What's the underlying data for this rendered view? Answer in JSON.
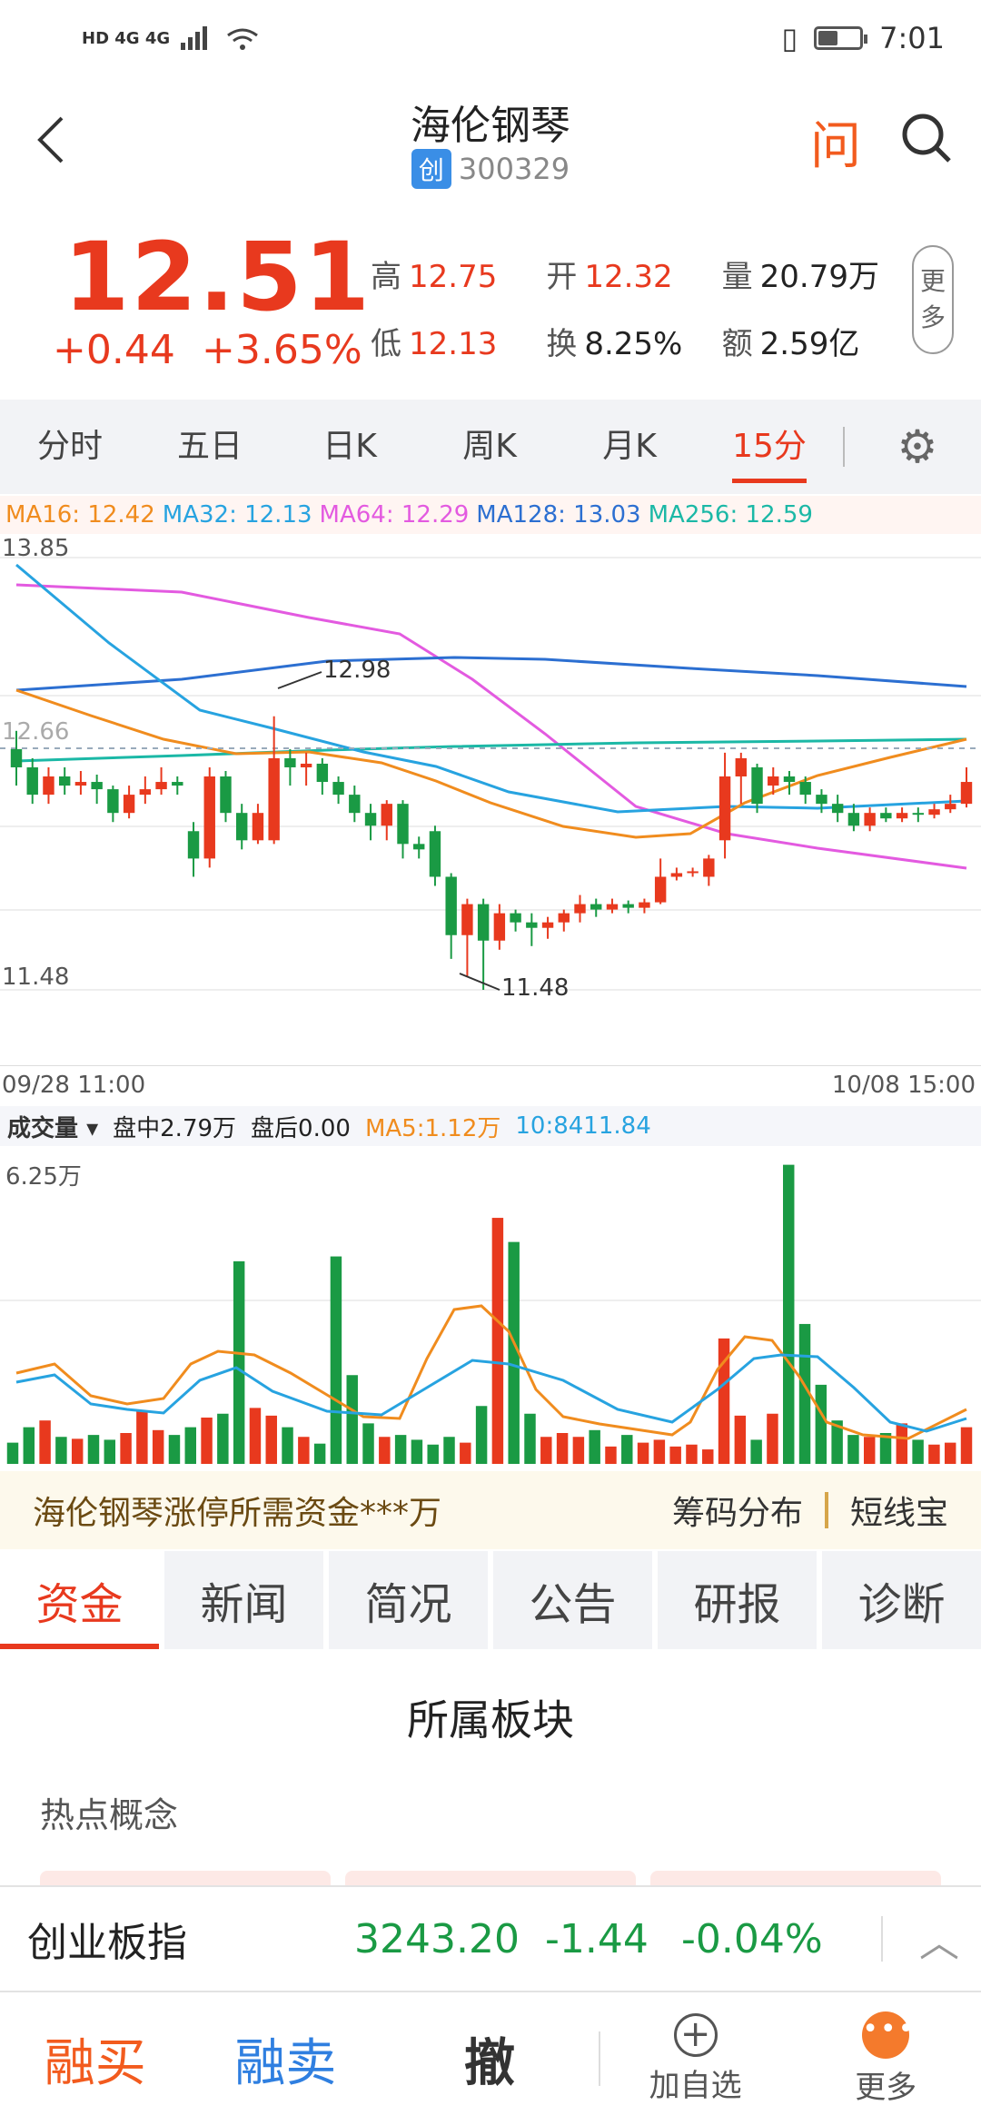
{
  "status": {
    "left_icons": "HD 4G 4G",
    "time": "7:01"
  },
  "header": {
    "title": "海伦钢琴",
    "board_badge": "创",
    "code": "300329",
    "ask_label": "问"
  },
  "quote": {
    "price": "12.51",
    "change": "+0.44",
    "change_pct": "+3.65%",
    "high_label": "高",
    "high": "12.75",
    "open_label": "开",
    "open": "12.32",
    "volume_label": "量",
    "volume": "20.79万",
    "low_label": "低",
    "low": "12.13",
    "turnover_label": "换",
    "turnover": "8.25%",
    "amount_label": "额",
    "amount": "2.59亿",
    "more_label_1": "更",
    "more_label_2": "多"
  },
  "period_tabs": [
    "分时",
    "五日",
    "日K",
    "周K",
    "月K",
    "15分"
  ],
  "active_period": 5,
  "ma_legend": {
    "ma16": "MA16: 12.42",
    "ma32": "MA32: 12.13",
    "ma64": "MA64: 12.29",
    "ma128": "MA128: 13.03",
    "ma256": "MA256: 12.59"
  },
  "colors": {
    "up": "#e8391e",
    "down": "#1a9a44",
    "ma16": "#f08c1e",
    "ma32": "#27a3e0",
    "ma64": "#e35ae0",
    "ma128": "#2c6fd1",
    "ma256": "#1bb8a6"
  },
  "kchart": {
    "y_top": "13.85",
    "y_bottom": "11.48",
    "ref_price": "12.66",
    "high_mark": "12.98",
    "low_mark": "11.48",
    "x_start": "09/28 11:00",
    "x_end": "10/08 15:00"
  },
  "volume": {
    "label": "成交量",
    "intraday": "盘中2.79万",
    "after": "盘后0.00",
    "ma5": "MA5:1.12万",
    "ma10": "10:8411.84",
    "y_top": "6.25万"
  },
  "banner": {
    "text": "海伦钢琴涨停所需资金***万",
    "chip": "筹码分布",
    "short": "短线宝"
  },
  "info_tabs": [
    "资金",
    "新闻",
    "简况",
    "公告",
    "研报",
    "诊断"
  ],
  "section_title": "所属板块",
  "hot_concept": "热点概念",
  "index": {
    "name": "创业板指",
    "value": "3243.20",
    "change": "-1.44",
    "pct": "-0.04%"
  },
  "bottom": {
    "buy": "融买",
    "sell": "融卖",
    "cancel": "撤",
    "add": "加自选",
    "more": "更多"
  },
  "chart_data": {
    "type": "candlestick",
    "ylim": [
      11.48,
      13.85
    ],
    "candles": [
      [
        12.8,
        12.7,
        12.9,
        12.6
      ],
      [
        12.7,
        12.55,
        12.75,
        12.5
      ],
      [
        12.55,
        12.65,
        12.7,
        12.5
      ],
      [
        12.65,
        12.6,
        12.7,
        12.55
      ],
      [
        12.6,
        12.62,
        12.68,
        12.55
      ],
      [
        12.62,
        12.58,
        12.66,
        12.5
      ],
      [
        12.58,
        12.45,
        12.6,
        12.4
      ],
      [
        12.45,
        12.55,
        12.6,
        12.42
      ],
      [
        12.55,
        12.58,
        12.65,
        12.5
      ],
      [
        12.58,
        12.62,
        12.7,
        12.55
      ],
      [
        12.62,
        12.6,
        12.65,
        12.55
      ],
      [
        12.35,
        12.2,
        12.4,
        12.1
      ],
      [
        12.2,
        12.65,
        12.7,
        12.15
      ],
      [
        12.65,
        12.45,
        12.68,
        12.4
      ],
      [
        12.45,
        12.3,
        12.5,
        12.25
      ],
      [
        12.3,
        12.45,
        12.5,
        12.28
      ],
      [
        12.3,
        12.75,
        12.98,
        12.28
      ],
      [
        12.75,
        12.7,
        12.8,
        12.6
      ],
      [
        12.7,
        12.72,
        12.78,
        12.6
      ],
      [
        12.72,
        12.62,
        12.75,
        12.55
      ],
      [
        12.62,
        12.55,
        12.65,
        12.5
      ],
      [
        12.55,
        12.45,
        12.6,
        12.4
      ],
      [
        12.45,
        12.38,
        12.5,
        12.3
      ],
      [
        12.38,
        12.5,
        12.52,
        12.3
      ],
      [
        12.5,
        12.28,
        12.52,
        12.2
      ],
      [
        12.28,
        12.25,
        12.32,
        12.2
      ],
      [
        12.35,
        12.1,
        12.38,
        12.05
      ],
      [
        12.1,
        11.78,
        12.12,
        11.65
      ],
      [
        11.78,
        11.95,
        11.98,
        11.55
      ],
      [
        11.95,
        11.75,
        11.98,
        11.48
      ],
      [
        11.75,
        11.9,
        11.95,
        11.7
      ],
      [
        11.9,
        11.85,
        11.92,
        11.8
      ],
      [
        11.85,
        11.82,
        11.9,
        11.72
      ],
      [
        11.82,
        11.85,
        11.88,
        11.76
      ],
      [
        11.85,
        11.9,
        11.92,
        11.8
      ],
      [
        11.9,
        11.95,
        12.0,
        11.85
      ],
      [
        11.95,
        11.92,
        11.98,
        11.88
      ],
      [
        11.92,
        11.95,
        11.98,
        11.9
      ],
      [
        11.95,
        11.93,
        11.97,
        11.9
      ],
      [
        11.93,
        11.96,
        11.98,
        11.9
      ],
      [
        11.96,
        12.1,
        12.2,
        11.95
      ],
      [
        12.1,
        12.12,
        12.15,
        12.08
      ],
      [
        12.12,
        12.13,
        12.15,
        12.1
      ],
      [
        12.1,
        12.2,
        12.22,
        12.05
      ],
      [
        12.3,
        12.65,
        12.78,
        12.2
      ],
      [
        12.65,
        12.75,
        12.78,
        12.5
      ],
      [
        12.7,
        12.5,
        12.72,
        12.45
      ],
      [
        12.6,
        12.65,
        12.7,
        12.55
      ],
      [
        12.65,
        12.62,
        12.68,
        12.55
      ],
      [
        12.62,
        12.55,
        12.65,
        12.5
      ],
      [
        12.55,
        12.5,
        12.58,
        12.45
      ],
      [
        12.5,
        12.45,
        12.55,
        12.4
      ],
      [
        12.45,
        12.38,
        12.5,
        12.35
      ],
      [
        12.38,
        12.45,
        12.48,
        12.35
      ],
      [
        12.45,
        12.42,
        12.48,
        12.4
      ],
      [
        12.42,
        12.45,
        12.48,
        12.4
      ],
      [
        12.45,
        12.44,
        12.48,
        12.4
      ],
      [
        12.44,
        12.47,
        12.5,
        12.42
      ],
      [
        12.47,
        12.5,
        12.55,
        12.45
      ],
      [
        12.5,
        12.62,
        12.7,
        12.48
      ]
    ],
    "volumes": [
      0.22,
      0.38,
      0.45,
      0.28,
      0.26,
      0.3,
      0.25,
      0.32,
      0.55,
      0.35,
      0.3,
      0.38,
      0.48,
      0.52,
      2.1,
      0.58,
      0.5,
      0.38,
      0.28,
      0.21,
      2.15,
      0.92,
      0.42,
      0.28,
      0.3,
      0.25,
      0.2,
      0.28,
      0.22,
      0.6,
      2.55,
      2.3,
      0.52,
      0.28,
      0.32,
      0.28,
      0.35,
      0.18,
      0.3,
      0.22,
      0.25,
      0.18,
      0.2,
      0.15,
      1.3,
      0.5,
      0.25,
      0.52,
      3.1,
      1.45,
      0.82,
      0.45,
      0.3,
      0.28,
      0.32,
      0.42,
      0.25,
      0.2,
      0.22,
      0.38
    ]
  }
}
